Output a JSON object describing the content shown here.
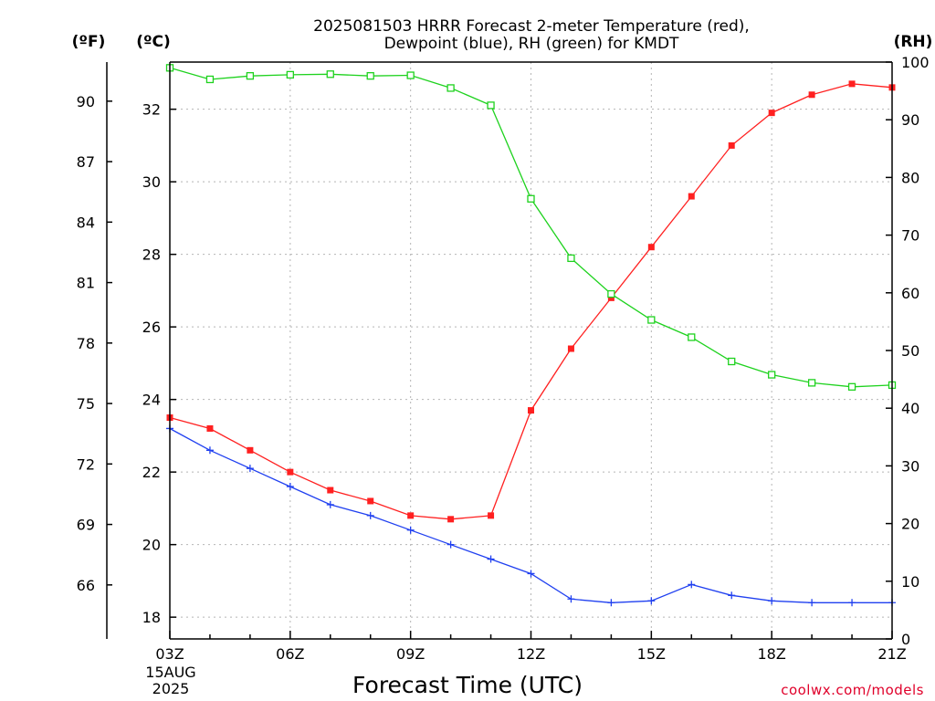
{
  "chart_data": {
    "type": "line",
    "title_line1": "2025081503 HRRR Forecast 2-meter Temperature (red),",
    "title_line2": "Dewpoint (blue), RH (green) for KMDT",
    "xlabel": "Forecast Time (UTC)",
    "x_date_line1": "15AUG",
    "x_date_line2": "2025",
    "credit": "coolwx.com/models",
    "units": {
      "fahrenheit": "(ºF)",
      "celsius": "(ºC)",
      "rh": "(RH)"
    },
    "x": [
      "03Z",
      "04Z",
      "05Z",
      "06Z",
      "07Z",
      "08Z",
      "09Z",
      "10Z",
      "11Z",
      "12Z",
      "13Z",
      "14Z",
      "15Z",
      "16Z",
      "17Z",
      "18Z",
      "19Z",
      "20Z",
      "21Z"
    ],
    "x_ticks": [
      "03Z",
      "06Z",
      "09Z",
      "12Z",
      "15Z",
      "18Z",
      "21Z"
    ],
    "celsius_axis": {
      "ylim": [
        17.4,
        33.3
      ],
      "ticks": [
        18,
        20,
        22,
        24,
        26,
        28,
        30,
        32
      ]
    },
    "fahrenheit_ticks": [
      66,
      69,
      72,
      75,
      78,
      81,
      84,
      87,
      90
    ],
    "rh_axis": {
      "ylim": [
        0,
        100
      ],
      "ticks": [
        0,
        10,
        20,
        30,
        40,
        50,
        60,
        70,
        80,
        90,
        100
      ]
    },
    "series": [
      {
        "name": "Temperature",
        "color": "#ff2020",
        "marker": "filled-square",
        "axis": "celsius",
        "values": [
          23.5,
          23.2,
          22.6,
          22.0,
          21.5,
          21.2,
          20.8,
          20.7,
          20.8,
          23.7,
          25.4,
          26.8,
          28.2,
          29.6,
          31.0,
          31.9,
          32.4,
          32.7,
          32.6
        ]
      },
      {
        "name": "Dewpoint",
        "color": "#2040f0",
        "marker": "plus",
        "axis": "celsius",
        "values": [
          23.2,
          22.6,
          22.1,
          21.6,
          21.1,
          20.8,
          20.4,
          20.0,
          19.6,
          19.2,
          18.5,
          18.4,
          18.45,
          18.9,
          18.6,
          18.45,
          18.4,
          18.4,
          18.4
        ]
      },
      {
        "name": "RH",
        "color": "#1ed21e",
        "marker": "open-square",
        "axis": "rh",
        "values": [
          99.0,
          97.0,
          97.6,
          97.8,
          97.9,
          97.6,
          97.7,
          95.5,
          92.5,
          76.3,
          66.0,
          59.8,
          55.3,
          52.3,
          48.1,
          45.8,
          44.4,
          43.7,
          44.0
        ]
      }
    ],
    "grid": true
  }
}
